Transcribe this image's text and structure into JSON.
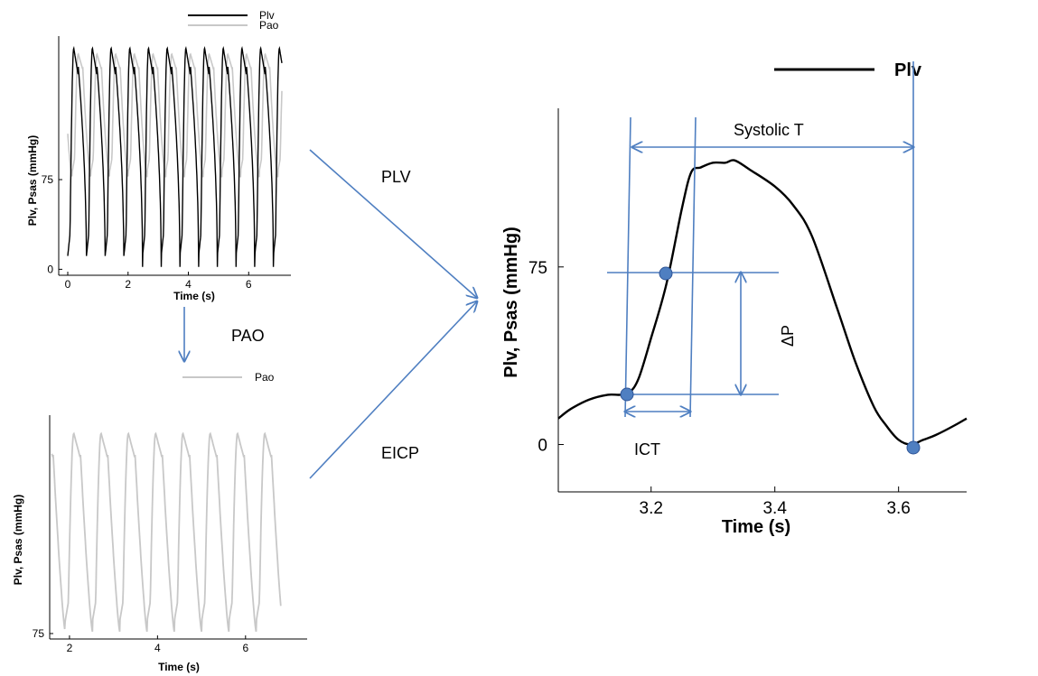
{
  "flow_labels": {
    "plv": "PLV",
    "pao": "PAO",
    "eicp": "EICP"
  },
  "annotations": {
    "systolic": "Systolic T",
    "delta_p": "ΔP",
    "ict": "ICT"
  },
  "chart_data": [
    {
      "type": "line",
      "xlabel": "Time (s)",
      "ylabel": "Plv, Psas (mmHg)",
      "xticks": [
        "0",
        "2",
        "4",
        "6"
      ],
      "yticks": [
        "0",
        "75"
      ],
      "xlim": [
        -0.3,
        7.4
      ],
      "ylim": [
        -5,
        195
      ],
      "legend": "top-right",
      "series": [
        {
          "name": "Plv",
          "color": "#000000",
          "period": 0.62,
          "min": 2,
          "max": 185
        },
        {
          "name": "Pao",
          "color": "#c8c8c8",
          "period": 0.62,
          "min": 77,
          "max": 180
        }
      ]
    },
    {
      "type": "line",
      "xlabel": "Time (s)",
      "ylabel": "Plv, Psas (mmHg)",
      "xticks": [
        "2",
        "4",
        "6"
      ],
      "yticks": [
        "75"
      ],
      "xlim": [
        1.55,
        7.4
      ],
      "ylim": [
        72,
        195
      ],
      "legend": "top-center",
      "series": [
        {
          "name": "Pao",
          "color": "#c8c8c8",
          "period": 0.62,
          "min": 76,
          "max": 185
        }
      ]
    },
    {
      "type": "line",
      "xlabel": "Time (s)",
      "ylabel": "Plv, Psas (mmHg)",
      "xticks": [
        "3.2",
        "3.4",
        "3.6"
      ],
      "yticks": [
        "0",
        "75"
      ],
      "xlim": [
        3.05,
        3.71
      ],
      "ylim": [
        -20,
        142
      ],
      "legend": "top-right",
      "series": [
        {
          "name": "Plv",
          "color": "#000000",
          "x": [
            3.05,
            3.07,
            3.1,
            3.13,
            3.15,
            3.165,
            3.18,
            3.2,
            3.225,
            3.25,
            3.265,
            3.28,
            3.3,
            3.32,
            3.335,
            3.36,
            3.4,
            3.43,
            3.46,
            3.5,
            3.53,
            3.56,
            3.58,
            3.6,
            3.62,
            3.64,
            3.66,
            3.69,
            3.71
          ],
          "y": [
            11,
            15,
            19,
            21,
            21,
            22,
            28,
            45,
            68,
            100,
            115,
            117,
            119,
            119,
            120,
            116,
            109,
            101,
            88,
            58,
            35,
            16,
            8,
            2,
            0,
            2,
            4,
            8,
            11
          ]
        }
      ]
    }
  ]
}
